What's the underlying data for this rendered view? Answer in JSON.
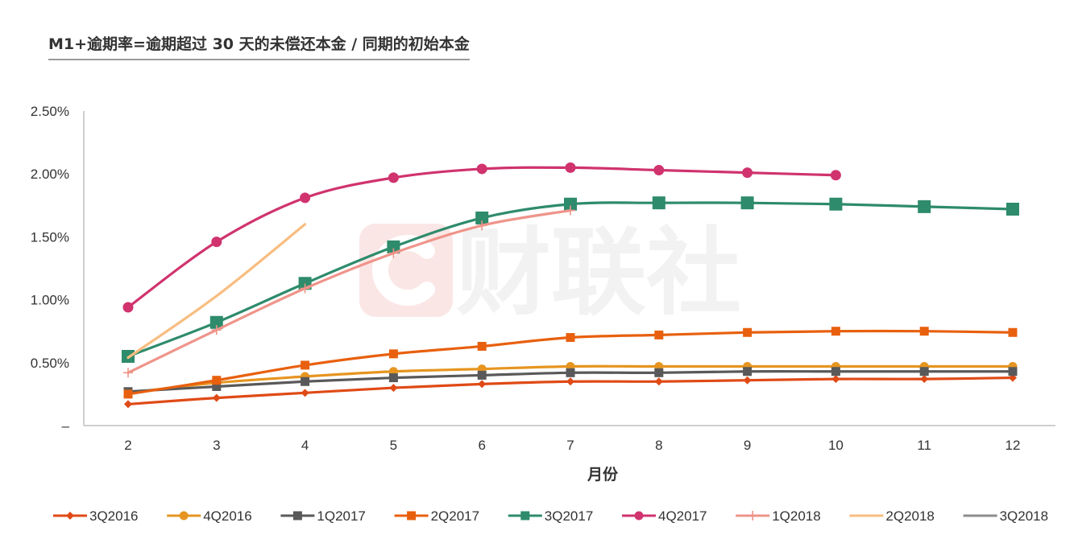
{
  "watermark": {
    "text": "财联社",
    "icon": "cls-logo-icon"
  },
  "chart_data": {
    "type": "line",
    "title": "M1+逾期率=逾期超过 30 天的未偿还本金 / 同期的初始本金",
    "xlabel": "月份",
    "ylabel": "",
    "x": [
      2,
      3,
      4,
      5,
      6,
      7,
      8,
      9,
      10,
      11,
      12
    ],
    "ylim": [
      0,
      0.025
    ],
    "yticks": [
      {
        "value": 0,
        "label": "–"
      },
      {
        "value": 0.005,
        "label": "0.50%"
      },
      {
        "value": 0.01,
        "label": "1.00%"
      },
      {
        "value": 0.015,
        "label": "1.50%"
      },
      {
        "value": 0.02,
        "label": "2.00%"
      },
      {
        "value": 0.025,
        "label": "2.50%"
      }
    ],
    "grid": false,
    "legend_position": "bottom",
    "series": [
      {
        "name": "3Q2016",
        "color": "#e04a16",
        "marker": "diamond",
        "values": [
          0.0017,
          0.0022,
          0.0026,
          0.003,
          0.0033,
          0.0035,
          0.0035,
          0.0036,
          0.0037,
          0.0037,
          0.0038
        ]
      },
      {
        "name": "4Q2016",
        "color": "#e69520",
        "marker": "circle",
        "values": [
          0.0026,
          0.0034,
          0.0039,
          0.0043,
          0.0045,
          0.0047,
          0.0047,
          0.0047,
          0.0047,
          0.0047,
          0.0047
        ]
      },
      {
        "name": "1Q2017",
        "color": "#595959",
        "marker": "square",
        "values": [
          0.0027,
          0.0031,
          0.0035,
          0.0038,
          0.004,
          0.0042,
          0.0042,
          0.0043,
          0.0043,
          0.0043,
          0.0043
        ]
      },
      {
        "name": "2Q2017",
        "color": "#e8600e",
        "marker": "square",
        "values": [
          0.0025,
          0.0036,
          0.0048,
          0.0057,
          0.0063,
          0.007,
          0.0072,
          0.0074,
          0.0075,
          0.0075,
          0.0074
        ]
      },
      {
        "name": "3Q2017",
        "color": "#2e8b6b",
        "marker": "square-large",
        "values": [
          0.0055,
          0.0082,
          0.0113,
          0.0142,
          0.0165,
          0.0176,
          0.0177,
          0.0177,
          0.0176,
          0.0174,
          0.0172
        ]
      },
      {
        "name": "4Q2017",
        "color": "#d0336e",
        "marker": "circle-large",
        "values": [
          0.0094,
          0.0146,
          0.0181,
          0.0197,
          0.0204,
          0.0205,
          0.0203,
          0.0201,
          0.0199,
          null,
          null
        ]
      },
      {
        "name": "1Q2018",
        "color": "#ef948a",
        "marker": "plus",
        "values": [
          0.0042,
          0.0076,
          0.0109,
          0.0137,
          0.0159,
          0.0171,
          null,
          null,
          null,
          null,
          null
        ]
      },
      {
        "name": "2Q2018",
        "color": "#f8bd80",
        "marker": "none",
        "values": [
          0.0054,
          0.0103,
          0.016,
          null,
          null,
          null,
          null,
          null,
          null,
          null,
          null
        ]
      },
      {
        "name": "3Q2018",
        "color": "#8c8c8c",
        "marker": "none",
        "values": [
          null,
          null,
          null,
          null,
          null,
          null,
          null,
          null,
          null,
          null,
          null
        ]
      }
    ]
  }
}
